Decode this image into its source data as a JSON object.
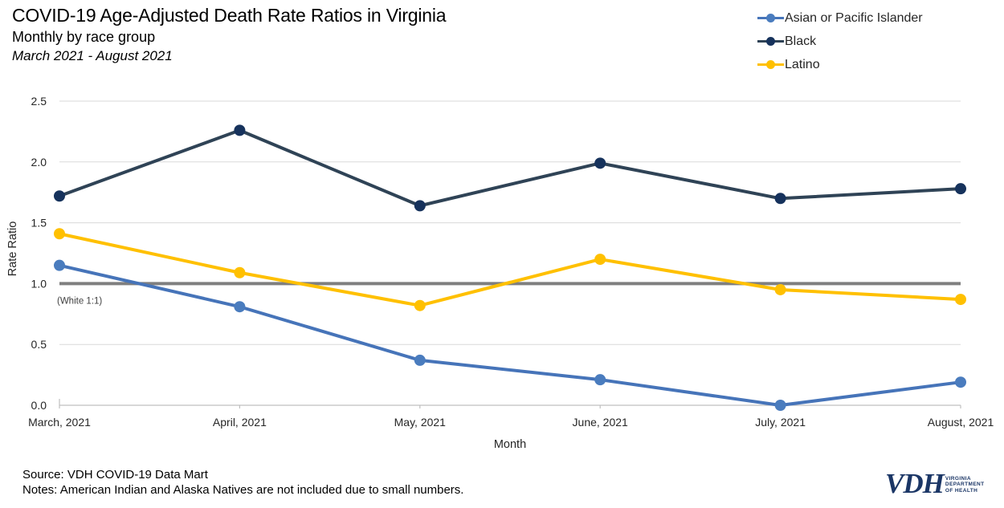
{
  "header": {
    "title": "COVID-19 Age-Adjusted Death Rate Ratios in Virginia",
    "subtitle": "Monthly by race group",
    "date_range": "March 2021 - August 2021"
  },
  "chart_data": {
    "type": "line",
    "title": "COVID-19 Age-Adjusted Death Rate Ratios in Virginia",
    "xlabel": "Month",
    "ylabel": "Rate Ratio",
    "categories": [
      "March, 2021",
      "April, 2021",
      "May, 2021",
      "June, 2021",
      "July, 2021",
      "August, 2021"
    ],
    "series": [
      {
        "name": "Asian or Pacific Islander",
        "line_color": "#4674B9",
        "marker_color": "#4A7CBE",
        "values": [
          1.15,
          0.81,
          0.37,
          0.21,
          0.0,
          0.19
        ]
      },
      {
        "name": "Black",
        "line_color": "#2F4356",
        "marker_color": "#16325C",
        "values": [
          1.72,
          2.26,
          1.64,
          1.99,
          1.7,
          1.78
        ]
      },
      {
        "name": "Latino",
        "line_color": "#FFC000",
        "marker_color": "#FFC000",
        "values": [
          1.41,
          1.09,
          0.82,
          1.2,
          0.95,
          0.87
        ]
      }
    ],
    "ylim": [
      0,
      2.5
    ],
    "yticks": [
      {
        "v": 0.0,
        "label": "0.0"
      },
      {
        "v": 0.5,
        "label": "0.5"
      },
      {
        "v": 1.0,
        "label": "1.0"
      },
      {
        "v": 1.5,
        "label": "1.5"
      },
      {
        "v": 2.0,
        "label": "2.0"
      },
      {
        "v": 2.5,
        "label": "2.5"
      }
    ],
    "reference_line": {
      "value": 1.0,
      "label": "(White 1:1)",
      "color": "#7F7F7F"
    },
    "grid": true,
    "legend_position": "top-right",
    "colors": {
      "gridline": "#D9D9D9",
      "axis": "#BFBFBF"
    }
  },
  "footer": {
    "source": "Source: VDH COVID-19 Data Mart",
    "notes": "Notes: American Indian and Alaska Natives are not included due to small numbers."
  },
  "logo": {
    "vdh": "VDH",
    "line1": "VIRGINIA",
    "line2": "DEPARTMENT",
    "line3": "OF HEALTH"
  }
}
